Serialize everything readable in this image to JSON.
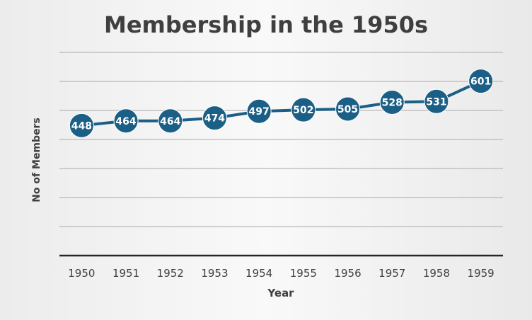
{
  "chart_data": {
    "type": "line",
    "title": "Membership in the 1950s",
    "xlabel": "Year",
    "ylabel": "No of Members",
    "categories": [
      "1950",
      "1951",
      "1952",
      "1953",
      "1954",
      "1955",
      "1956",
      "1957",
      "1958",
      "1959"
    ],
    "series": [
      {
        "values": [
          448,
          464,
          464,
          474,
          497,
          502,
          505,
          528,
          531,
          601
        ]
      }
    ],
    "data_labels": [
      "448",
      "464",
      "464",
      "474",
      "497",
      "502",
      "505",
      "528",
      "531",
      "601"
    ],
    "ylim": [
      0,
      700
    ],
    "grid": true,
    "legend": "none",
    "colors": {
      "series": "#1b5f86",
      "label_text": "#ffffff",
      "grid": "#b8b8b8",
      "axis": "#262626",
      "title": "#3f3f3f"
    }
  }
}
